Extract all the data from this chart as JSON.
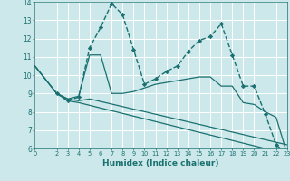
{
  "xlabel": "Humidex (Indice chaleur)",
  "bg_color": "#cce8ea",
  "grid_color": "#ffffff",
  "line_color": "#1a7070",
  "xlim": [
    0,
    23
  ],
  "ylim": [
    6,
    14
  ],
  "yticks": [
    6,
    7,
    8,
    9,
    10,
    11,
    12,
    13,
    14
  ],
  "xticks": [
    0,
    2,
    3,
    4,
    5,
    6,
    7,
    8,
    9,
    10,
    11,
    12,
    13,
    14,
    15,
    16,
    17,
    18,
    19,
    20,
    21,
    22,
    23
  ],
  "series": [
    {
      "x": [
        2,
        3,
        4,
        5,
        6,
        7,
        8,
        9,
        10,
        11,
        12,
        13,
        14,
        15,
        16,
        17,
        18,
        19,
        20,
        21,
        22,
        23
      ],
      "y": [
        9.0,
        8.6,
        8.8,
        11.5,
        12.6,
        13.9,
        13.3,
        11.4,
        9.5,
        9.8,
        10.2,
        10.5,
        11.3,
        11.9,
        12.1,
        12.8,
        11.1,
        9.4,
        9.4,
        7.9,
        6.2,
        5.7
      ],
      "marker": "D",
      "markersize": 2.2,
      "linewidth": 1.0,
      "linestyle": "--"
    },
    {
      "x": [
        0,
        2,
        3,
        4,
        5,
        6,
        7,
        8,
        9,
        10,
        11,
        12,
        13,
        14,
        15,
        16,
        17,
        18,
        19,
        20,
        21,
        22,
        23
      ],
      "y": [
        10.5,
        9.0,
        8.7,
        8.85,
        11.1,
        11.1,
        9.0,
        9.0,
        9.1,
        9.3,
        9.5,
        9.6,
        9.7,
        9.8,
        9.9,
        9.9,
        9.4,
        9.4,
        8.5,
        8.4,
        8.0,
        7.7,
        5.7
      ],
      "marker": null,
      "markersize": 0,
      "linewidth": 0.9,
      "linestyle": "-"
    },
    {
      "x": [
        0,
        2,
        3,
        4,
        5,
        23
      ],
      "y": [
        10.5,
        9.0,
        8.7,
        8.6,
        8.7,
        6.2
      ],
      "marker": null,
      "markersize": 0,
      "linewidth": 0.9,
      "linestyle": "-"
    },
    {
      "x": [
        0,
        2,
        3,
        4,
        23
      ],
      "y": [
        10.5,
        9.0,
        8.6,
        8.5,
        5.7
      ],
      "marker": null,
      "markersize": 0,
      "linewidth": 0.9,
      "linestyle": "-"
    }
  ]
}
